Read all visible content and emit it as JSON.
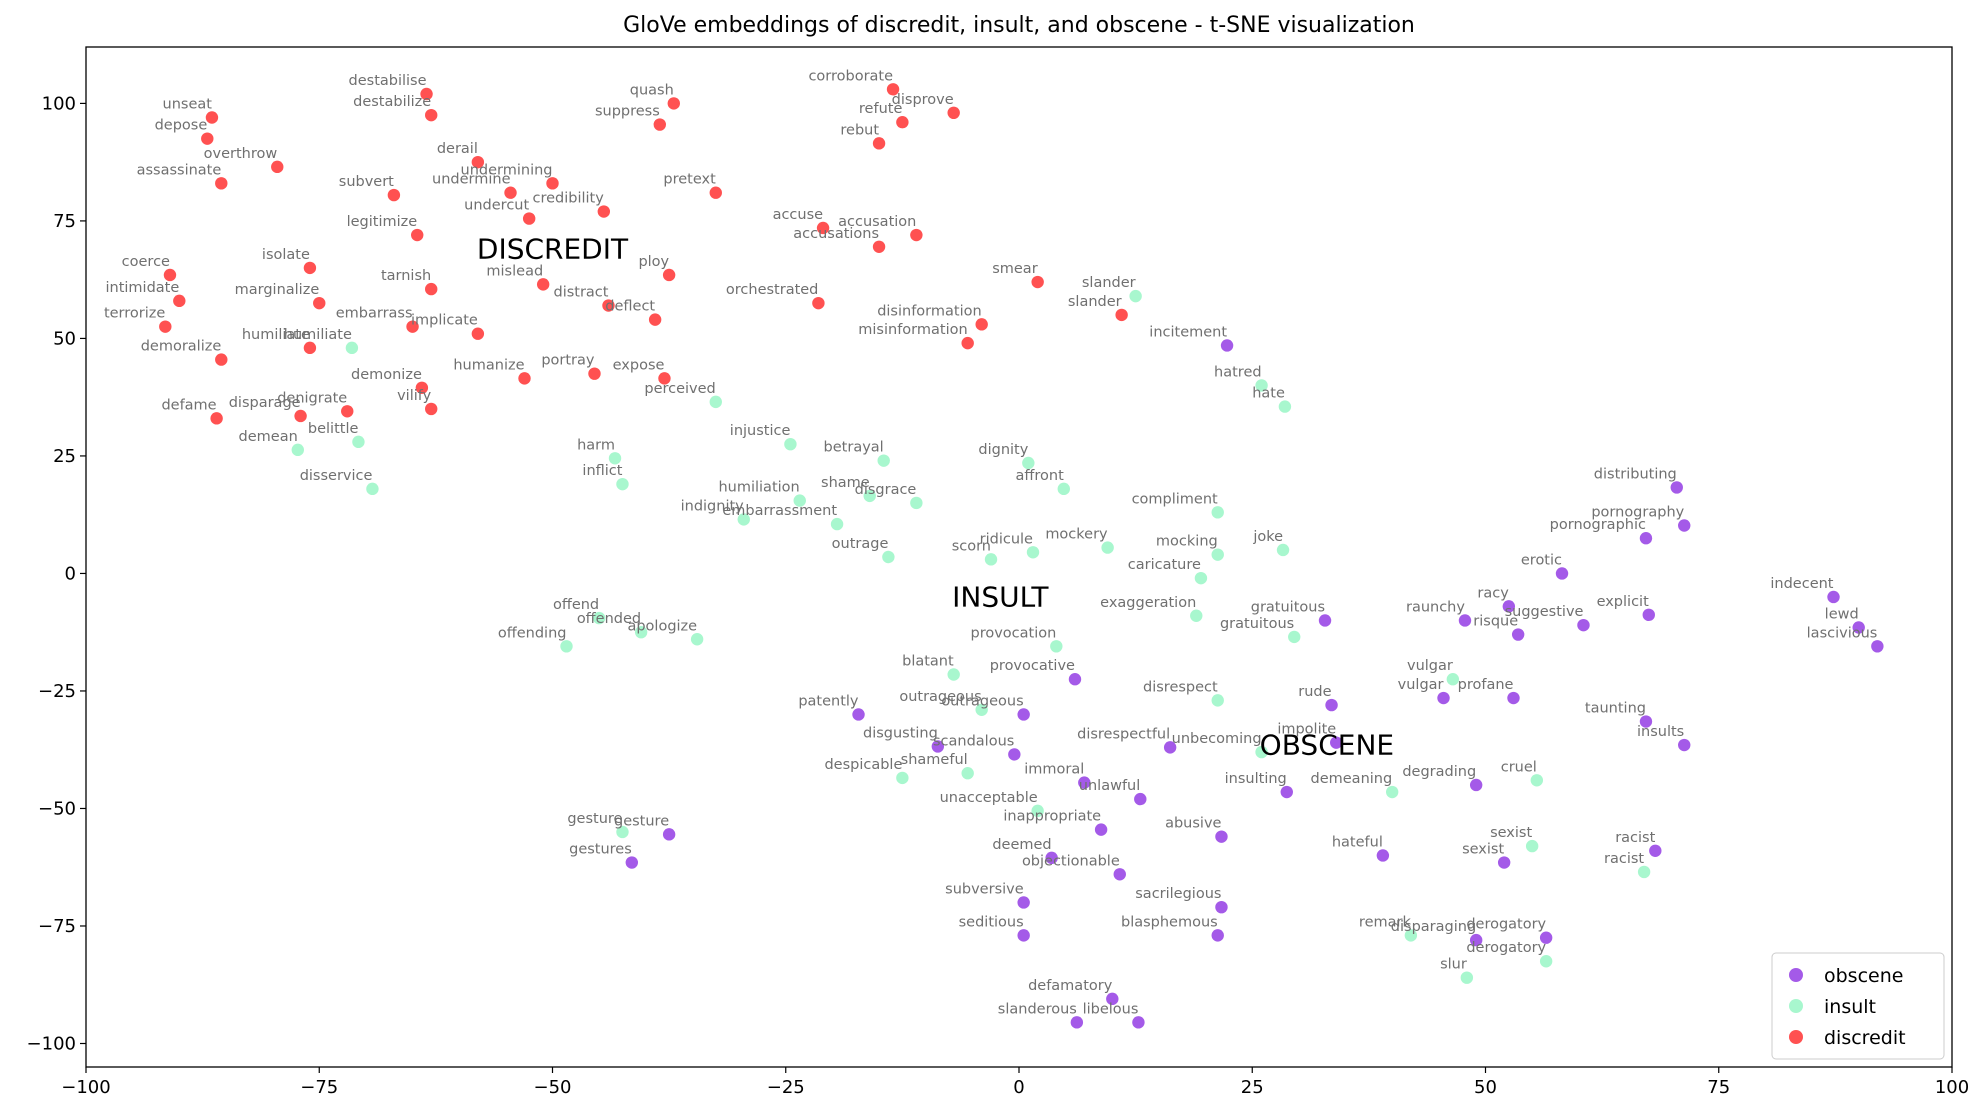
{
  "chart_data": {
    "type": "scatter",
    "title": "GloVe embeddings of discredit, insult, and obscene - t-SNE visualization",
    "xlabel": "",
    "ylabel": "",
    "xlim": [
      -100,
      100
    ],
    "ylim": [
      -105,
      112
    ],
    "xticks": [
      -100,
      -75,
      -50,
      -25,
      0,
      25,
      50,
      75,
      100
    ],
    "yticks": [
      -100,
      -75,
      -50,
      -25,
      0,
      25,
      50,
      75,
      100
    ],
    "grid": false,
    "legend_position": "lower-right",
    "series": [
      {
        "name": "obscene",
        "color": "#8a2be2",
        "points": [
          {
            "label": "incitement",
            "x": 22.3,
            "y": 48.5
          },
          {
            "label": "distributing",
            "x": 70.5,
            "y": 18.3
          },
          {
            "label": "pornography",
            "x": 71.3,
            "y": 10.2
          },
          {
            "label": "pornographic",
            "x": 67.2,
            "y": 7.5
          },
          {
            "label": "erotic",
            "x": 58.2,
            "y": 0.0
          },
          {
            "label": "indecent",
            "x": 87.3,
            "y": -5.0
          },
          {
            "label": "lewd",
            "x": 90.0,
            "y": -11.5
          },
          {
            "label": "lascivious",
            "x": 92.0,
            "y": -15.5
          },
          {
            "label": "racy",
            "x": 52.5,
            "y": -7.0
          },
          {
            "label": "raunchy",
            "x": 47.8,
            "y": -10.0
          },
          {
            "label": "risque",
            "x": 53.5,
            "y": -13.0
          },
          {
            "label": "suggestive",
            "x": 60.5,
            "y": -11.0
          },
          {
            "label": "explicit",
            "x": 67.5,
            "y": -8.8
          },
          {
            "label": "gratuitous",
            "x": 32.8,
            "y": -10.0
          },
          {
            "label": "vulgar",
            "x": 45.5,
            "y": -26.5
          },
          {
            "label": "profane",
            "x": 53.0,
            "y": -26.5
          },
          {
            "label": "taunting",
            "x": 67.2,
            "y": -31.5
          },
          {
            "label": "insults",
            "x": 71.3,
            "y": -36.5
          },
          {
            "label": "rude",
            "x": 33.5,
            "y": -28.0
          },
          {
            "label": "impolite",
            "x": 34.0,
            "y": -36.0
          },
          {
            "label": "disrespectful",
            "x": 16.2,
            "y": -37.0
          },
          {
            "label": "insulting",
            "x": 28.7,
            "y": -46.5
          },
          {
            "label": "degrading",
            "x": 49.0,
            "y": -45.0
          },
          {
            "label": "provocative",
            "x": 6.0,
            "y": -22.5
          },
          {
            "label": "patently",
            "x": -17.2,
            "y": -30.0
          },
          {
            "label": "outrageous",
            "x": 0.5,
            "y": -30.0
          },
          {
            "label": "disgusting",
            "x": -8.7,
            "y": -36.8
          },
          {
            "label": "scandalous",
            "x": -0.5,
            "y": -38.5
          },
          {
            "label": "immoral",
            "x": 7.0,
            "y": -44.5
          },
          {
            "label": "unlawful",
            "x": 13.0,
            "y": -48.0
          },
          {
            "label": "inappropriate",
            "x": 8.8,
            "y": -54.5
          },
          {
            "label": "abusive",
            "x": 21.7,
            "y": -56.0
          },
          {
            "label": "deemed",
            "x": 3.5,
            "y": -60.5
          },
          {
            "label": "objectionable",
            "x": 10.8,
            "y": -64.0
          },
          {
            "label": "subversive",
            "x": 0.5,
            "y": -70.0
          },
          {
            "label": "seditious",
            "x": 0.5,
            "y": -77.0
          },
          {
            "label": "sacrilegious",
            "x": 21.7,
            "y": -71.0
          },
          {
            "label": "blasphemous",
            "x": 21.3,
            "y": -77.0
          },
          {
            "label": "hateful",
            "x": 39.0,
            "y": -60.0
          },
          {
            "label": "racist",
            "x": 68.2,
            "y": -59.0
          },
          {
            "label": "sexist",
            "x": 52.0,
            "y": -61.5
          },
          {
            "label": "disparaging",
            "x": 49.0,
            "y": -78.0
          },
          {
            "label": "derogatory",
            "x": 56.5,
            "y": -77.5
          },
          {
            "label": "defamatory",
            "x": 10.0,
            "y": -90.5
          },
          {
            "label": "slanderous",
            "x": 6.2,
            "y": -95.5
          },
          {
            "label": "libelous",
            "x": 12.8,
            "y": -95.5
          },
          {
            "label": "gesture",
            "x": -37.5,
            "y": -55.5
          },
          {
            "label": "gestures",
            "x": -41.5,
            "y": -61.5
          }
        ]
      },
      {
        "name": "insult",
        "color": "#90f5c0",
        "points": [
          {
            "label": "slander",
            "x": 12.5,
            "y": 59.0
          },
          {
            "label": "hatred",
            "x": 26.0,
            "y": 40.0
          },
          {
            "label": "hate",
            "x": 28.5,
            "y": 35.5
          },
          {
            "label": "humiliate",
            "x": -71.5,
            "y": 48.0
          },
          {
            "label": "perceived",
            "x": -32.5,
            "y": 36.5
          },
          {
            "label": "demean",
            "x": -77.3,
            "y": 26.3
          },
          {
            "label": "belittle",
            "x": -70.8,
            "y": 28.0
          },
          {
            "label": "disservice",
            "x": -69.3,
            "y": 18.0
          },
          {
            "label": "harm",
            "x": -43.3,
            "y": 24.5
          },
          {
            "label": "inflict",
            "x": -42.5,
            "y": 19.0
          },
          {
            "label": "injustice",
            "x": -24.5,
            "y": 27.5
          },
          {
            "label": "betrayal",
            "x": -14.5,
            "y": 24.0
          },
          {
            "label": "dignity",
            "x": 1.0,
            "y": 23.5
          },
          {
            "label": "affront",
            "x": 4.8,
            "y": 18.0
          },
          {
            "label": "humiliation",
            "x": -23.5,
            "y": 15.5
          },
          {
            "label": "indignity",
            "x": -29.5,
            "y": 11.5
          },
          {
            "label": "embarrassment",
            "x": -19.5,
            "y": 10.5
          },
          {
            "label": "shame",
            "x": -16.0,
            "y": 16.5
          },
          {
            "label": "disgrace",
            "x": -11.0,
            "y": 15.0
          },
          {
            "label": "outrage",
            "x": -14.0,
            "y": 3.5
          },
          {
            "label": "scorn",
            "x": -3.0,
            "y": 3.0
          },
          {
            "label": "ridicule",
            "x": 1.5,
            "y": 4.5
          },
          {
            "label": "mockery",
            "x": 9.5,
            "y": 5.5
          },
          {
            "label": "compliment",
            "x": 21.3,
            "y": 13.0
          },
          {
            "label": "mocking",
            "x": 21.3,
            "y": 4.0
          },
          {
            "label": "joke",
            "x": 28.3,
            "y": 5.0
          },
          {
            "label": "caricature",
            "x": 19.5,
            "y": -1.0
          },
          {
            "label": "exaggeration",
            "x": 19.0,
            "y": -9.0
          },
          {
            "label": "gratuitous",
            "x": 29.5,
            "y": -13.5
          },
          {
            "label": "offend",
            "x": -45.0,
            "y": -9.5
          },
          {
            "label": "offending",
            "x": -48.5,
            "y": -15.5
          },
          {
            "label": "offended",
            "x": -40.5,
            "y": -12.5
          },
          {
            "label": "apologize",
            "x": -34.5,
            "y": -14.0
          },
          {
            "label": "provocation",
            "x": 4.0,
            "y": -15.5
          },
          {
            "label": "blatant",
            "x": -7.0,
            "y": -21.5
          },
          {
            "label": "outrageous",
            "x": -4.0,
            "y": -29.0
          },
          {
            "label": "despicable",
            "x": -12.5,
            "y": -43.5
          },
          {
            "label": "shameful",
            "x": -5.5,
            "y": -42.5
          },
          {
            "label": "unacceptable",
            "x": 2.0,
            "y": -50.5
          },
          {
            "label": "disrespect",
            "x": 21.3,
            "y": -27.0
          },
          {
            "label": "unbecoming",
            "x": 26.0,
            "y": -38.0
          },
          {
            "label": "demeaning",
            "x": 40.0,
            "y": -46.5
          },
          {
            "label": "vulgar",
            "x": 46.5,
            "y": -22.5
          },
          {
            "label": "cruel",
            "x": 55.5,
            "y": -44.0
          },
          {
            "label": "sexist",
            "x": 55.0,
            "y": -58.0
          },
          {
            "label": "racist",
            "x": 67.0,
            "y": -63.5
          },
          {
            "label": "remark",
            "x": 42.0,
            "y": -77.0
          },
          {
            "label": "slur",
            "x": 48.0,
            "y": -86.0
          },
          {
            "label": "derogatory",
            "x": 56.5,
            "y": -82.5
          },
          {
            "label": "gesture",
            "x": -42.5,
            "y": -55.0
          }
        ]
      },
      {
        "name": "discredit",
        "color": "#ff2020",
        "points": [
          {
            "label": "destabilise",
            "x": -63.5,
            "y": 102.0
          },
          {
            "label": "destabilize",
            "x": -63.0,
            "y": 97.5
          },
          {
            "label": "unseat",
            "x": -86.5,
            "y": 97.0
          },
          {
            "label": "depose",
            "x": -87.0,
            "y": 92.5
          },
          {
            "label": "overthrow",
            "x": -79.5,
            "y": 86.5
          },
          {
            "label": "assassinate",
            "x": -85.5,
            "y": 83.0
          },
          {
            "label": "quash",
            "x": -37.0,
            "y": 100.0
          },
          {
            "label": "suppress",
            "x": -38.5,
            "y": 95.5
          },
          {
            "label": "corroborate",
            "x": -13.5,
            "y": 103.0
          },
          {
            "label": "refute",
            "x": -12.5,
            "y": 96.0
          },
          {
            "label": "disprove",
            "x": -7.0,
            "y": 98.0
          },
          {
            "label": "rebut",
            "x": -15.0,
            "y": 91.5
          },
          {
            "label": "derail",
            "x": -58.0,
            "y": 87.5
          },
          {
            "label": "undermining",
            "x": -50.0,
            "y": 83.0
          },
          {
            "label": "undermine",
            "x": -54.5,
            "y": 81.0
          },
          {
            "label": "subvert",
            "x": -67.0,
            "y": 80.5
          },
          {
            "label": "undercut",
            "x": -52.5,
            "y": 75.5
          },
          {
            "label": "credibility",
            "x": -44.5,
            "y": 77.0
          },
          {
            "label": "pretext",
            "x": -32.5,
            "y": 81.0
          },
          {
            "label": "legitimize",
            "x": -64.5,
            "y": 72.0
          },
          {
            "label": "accuse",
            "x": -21.0,
            "y": 73.5
          },
          {
            "label": "accusation",
            "x": -11.0,
            "y": 72.0
          },
          {
            "label": "accusations",
            "x": -15.0,
            "y": 69.5
          },
          {
            "label": "coerce",
            "x": -91.0,
            "y": 63.5
          },
          {
            "label": "isolate",
            "x": -76.0,
            "y": 65.0
          },
          {
            "label": "intimidate",
            "x": -90.0,
            "y": 58.0
          },
          {
            "label": "marginalize",
            "x": -75.0,
            "y": 57.5
          },
          {
            "label": "tarnish",
            "x": -63.0,
            "y": 60.5
          },
          {
            "label": "mislead",
            "x": -51.0,
            "y": 61.5
          },
          {
            "label": "distract",
            "x": -44.0,
            "y": 57.0
          },
          {
            "label": "ploy",
            "x": -37.5,
            "y": 63.5
          },
          {
            "label": "orchestrated",
            "x": -21.5,
            "y": 57.5
          },
          {
            "label": "smear",
            "x": 2.0,
            "y": 62.0
          },
          {
            "label": "terrorize",
            "x": -91.5,
            "y": 52.5
          },
          {
            "label": "humiliate",
            "x": -76.0,
            "y": 48.0
          },
          {
            "label": "embarrass",
            "x": -65.0,
            "y": 52.5
          },
          {
            "label": "implicate",
            "x": -58.0,
            "y": 51.0
          },
          {
            "label": "deflect",
            "x": -39.0,
            "y": 54.0
          },
          {
            "label": "disinformation",
            "x": -4.0,
            "y": 53.0
          },
          {
            "label": "misinformation",
            "x": -5.5,
            "y": 49.0
          },
          {
            "label": "slander",
            "x": 11.0,
            "y": 55.0
          },
          {
            "label": "demoralize",
            "x": -85.5,
            "y": 45.5
          },
          {
            "label": "demonize",
            "x": -64.0,
            "y": 39.5
          },
          {
            "label": "humanize",
            "x": -53.0,
            "y": 41.5
          },
          {
            "label": "portray",
            "x": -45.5,
            "y": 42.5
          },
          {
            "label": "expose",
            "x": -38.0,
            "y": 41.5
          },
          {
            "label": "defame",
            "x": -86.0,
            "y": 33.0
          },
          {
            "label": "disparage",
            "x": -77.0,
            "y": 33.5
          },
          {
            "label": "denigrate",
            "x": -72.0,
            "y": 34.5
          },
          {
            "label": "vilify",
            "x": -63.0,
            "y": 35.0
          }
        ]
      }
    ],
    "annotations": [
      {
        "text": "DISCREDIT",
        "x": -50.0,
        "y": 67.0
      },
      {
        "text": "INSULT",
        "x": -2.0,
        "y": -7.0
      },
      {
        "text": "OBSCENE",
        "x": 33.0,
        "y": -38.5
      }
    ],
    "legend": [
      {
        "name": "obscene"
      },
      {
        "name": "insult"
      },
      {
        "name": "discredit"
      }
    ]
  }
}
